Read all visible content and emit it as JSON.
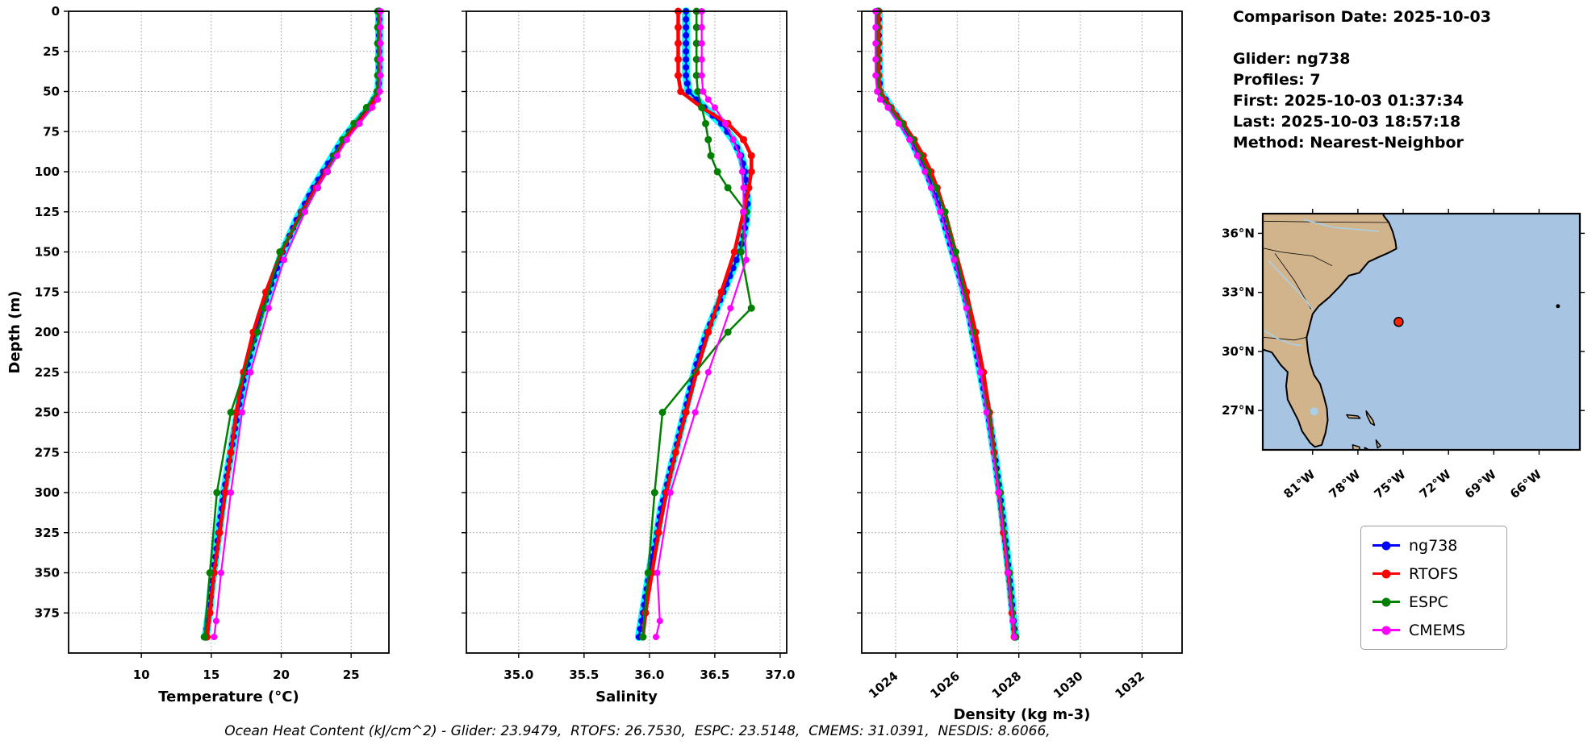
{
  "info": {
    "comparison_date": "Comparison Date: 2025-10-03",
    "glider": "Glider: ng738",
    "profiles": "Profiles: 7",
    "first": "First: 2025-10-03 01:37:34",
    "last": "Last: 2025-10-03 18:57:18",
    "method": "Method: Nearest-Neighbor"
  },
  "legend": {
    "items": [
      {
        "label": "ng738",
        "color": "#0000ff"
      },
      {
        "label": "RTOFS",
        "color": "#ff0000"
      },
      {
        "label": "ESPC",
        "color": "#008000"
      },
      {
        "label": "CMEMS",
        "color": "#ff00ff"
      }
    ]
  },
  "footer": {
    "ohc_caption": "Ocean Heat Content (kJ/cm^2) - Glider: 23.9479,  RTOFS: 26.7530,  ESPC: 23.5148,  CMEMS: 31.0391,  NESDIS: 8.6066,"
  },
  "ohc": {
    "glider": 23.9479,
    "rtofs": 26.753,
    "espc": 23.5148,
    "cmems": 31.0391,
    "nesdis": 8.6066
  },
  "chart_data": [
    {
      "type": "line",
      "name": "temperature-profile",
      "xlabel": "Temperature (°C)",
      "ylabel": "Depth (m)",
      "xlim": [
        4.8,
        27.7
      ],
      "ylim": [
        400,
        0
      ],
      "xticks": [
        10,
        15,
        20,
        25
      ],
      "xticklabels": [
        "10",
        "15",
        "20",
        "25"
      ],
      "yticks": [
        0,
        25,
        50,
        75,
        100,
        125,
        150,
        175,
        200,
        225,
        250,
        275,
        300,
        325,
        350,
        375
      ],
      "rotate_xticks": false,
      "grid": true,
      "series": [
        {
          "name": "ng738",
          "color": "#0000ff",
          "spread_color": "#00ffff",
          "depths": [
            0,
            10,
            20,
            30,
            40,
            50,
            60,
            70,
            80,
            90,
            100,
            110,
            120,
            130,
            140,
            150,
            160,
            170,
            180,
            190,
            200,
            210,
            220,
            230,
            240,
            250,
            260,
            270,
            280,
            290,
            300,
            310,
            320,
            330,
            340,
            350,
            360,
            370,
            380,
            390
          ],
          "values": [
            27.0,
            27.0,
            27.0,
            27.0,
            27.0,
            26.95,
            26.3,
            25.3,
            24.4,
            23.7,
            23.0,
            22.3,
            21.7,
            21.1,
            20.6,
            20.1,
            19.7,
            19.3,
            18.9,
            18.5,
            18.2,
            17.9,
            17.6,
            17.3,
            17.1,
            16.9,
            16.7,
            16.5,
            16.3,
            16.1,
            15.9,
            15.75,
            15.6,
            15.45,
            15.3,
            15.15,
            15.0,
            14.9,
            14.75,
            14.6
          ]
        },
        {
          "name": "RTOFS",
          "color": "#ff0000",
          "depths": [
            0,
            10,
            20,
            30,
            40,
            50,
            60,
            70,
            80,
            90,
            100,
            110,
            125,
            150,
            175,
            200,
            225,
            250,
            275,
            300,
            325,
            350,
            375,
            390
          ],
          "values": [
            27.0,
            27.0,
            27.0,
            27.0,
            27.0,
            26.9,
            26.4,
            25.5,
            24.6,
            23.9,
            23.2,
            22.5,
            21.5,
            20.0,
            18.9,
            18.0,
            17.3,
            16.8,
            16.4,
            16.0,
            15.6,
            15.2,
            14.9,
            14.7
          ]
        },
        {
          "name": "ESPC",
          "color": "#008000",
          "depths": [
            0,
            10,
            20,
            30,
            40,
            50,
            60,
            70,
            80,
            90,
            100,
            110,
            125,
            150,
            185,
            200,
            250,
            300,
            350,
            390
          ],
          "values": [
            26.9,
            26.9,
            26.9,
            26.9,
            26.9,
            26.85,
            26.1,
            25.2,
            24.4,
            23.8,
            23.3,
            22.6,
            21.6,
            19.9,
            18.8,
            18.3,
            16.4,
            15.4,
            14.9,
            14.5
          ]
        },
        {
          "name": "CMEMS",
          "color": "#ff00ff",
          "depths": [
            0,
            10,
            20,
            30,
            40,
            50,
            55,
            60,
            70,
            80,
            90,
            100,
            110,
            125,
            155,
            185,
            225,
            250,
            300,
            350,
            380,
            390
          ],
          "values": [
            27.1,
            27.1,
            27.1,
            27.1,
            27.1,
            27.05,
            26.9,
            26.5,
            25.6,
            24.7,
            24.0,
            23.3,
            22.6,
            21.7,
            20.2,
            19.1,
            17.8,
            17.2,
            16.4,
            15.7,
            15.35,
            15.2
          ]
        }
      ]
    },
    {
      "type": "line",
      "name": "salinity-profile",
      "xlabel": "Salinity",
      "ylabel": "Depth (m)",
      "xlim": [
        34.6,
        37.05
      ],
      "ylim": [
        400,
        0
      ],
      "xticks": [
        35.0,
        35.5,
        36.0,
        36.5,
        37.0
      ],
      "xticklabels": [
        "35.0",
        "35.5",
        "36.0",
        "36.5",
        "37.0"
      ],
      "yticks": [
        0,
        25,
        50,
        75,
        100,
        125,
        150,
        175,
        200,
        225,
        250,
        275,
        300,
        325,
        350,
        375
      ],
      "rotate_xticks": false,
      "grid": true,
      "series": [
        {
          "name": "ng738",
          "color": "#0000ff",
          "spread_color": "#00ffff",
          "depths": [
            0,
            10,
            20,
            30,
            40,
            50,
            60,
            70,
            80,
            90,
            100,
            110,
            120,
            130,
            140,
            150,
            160,
            170,
            180,
            190,
            200,
            210,
            220,
            230,
            240,
            250,
            260,
            270,
            280,
            290,
            300,
            310,
            320,
            330,
            340,
            350,
            360,
            370,
            380,
            390
          ],
          "values": [
            36.28,
            36.28,
            36.28,
            36.28,
            36.28,
            36.3,
            36.42,
            36.55,
            36.64,
            36.7,
            36.73,
            36.74,
            36.75,
            36.74,
            36.72,
            36.69,
            36.64,
            36.59,
            36.54,
            36.49,
            36.44,
            36.4,
            36.36,
            36.33,
            36.3,
            36.27,
            36.24,
            36.21,
            36.18,
            36.15,
            36.12,
            36.09,
            36.07,
            36.05,
            36.02,
            36.0,
            35.98,
            35.96,
            35.94,
            35.92
          ]
        },
        {
          "name": "RTOFS",
          "color": "#ff0000",
          "depths": [
            0,
            10,
            20,
            30,
            40,
            50,
            60,
            70,
            80,
            90,
            100,
            110,
            125,
            150,
            175,
            200,
            225,
            250,
            275,
            300,
            325,
            350,
            375,
            390
          ],
          "values": [
            36.22,
            36.22,
            36.22,
            36.22,
            36.22,
            36.24,
            36.4,
            36.6,
            36.72,
            36.78,
            36.78,
            36.76,
            36.72,
            36.65,
            36.55,
            36.45,
            36.36,
            36.28,
            36.2,
            36.13,
            36.07,
            36.02,
            35.97,
            35.95
          ]
        },
        {
          "name": "ESPC",
          "color": "#008000",
          "depths": [
            0,
            10,
            20,
            30,
            40,
            50,
            60,
            70,
            80,
            90,
            100,
            110,
            125,
            150,
            185,
            200,
            250,
            300,
            350,
            390
          ],
          "values": [
            36.36,
            36.36,
            36.36,
            36.36,
            36.36,
            36.37,
            36.4,
            36.43,
            36.45,
            36.47,
            36.52,
            36.6,
            36.74,
            36.7,
            36.78,
            36.6,
            36.1,
            36.04,
            35.99,
            35.95
          ]
        },
        {
          "name": "CMEMS",
          "color": "#ff00ff",
          "depths": [
            0,
            10,
            20,
            30,
            40,
            50,
            55,
            60,
            70,
            80,
            90,
            100,
            110,
            125,
            155,
            185,
            225,
            250,
            300,
            350,
            380,
            390
          ],
          "values": [
            36.4,
            36.4,
            36.4,
            36.4,
            36.4,
            36.41,
            36.45,
            36.5,
            36.58,
            36.64,
            36.69,
            36.71,
            36.72,
            36.72,
            36.74,
            36.62,
            36.45,
            36.35,
            36.16,
            36.06,
            36.08,
            36.05
          ]
        }
      ]
    },
    {
      "type": "line",
      "name": "density-profile",
      "xlabel": "Density (kg m-3)",
      "ylabel": "Depth (m)",
      "xlim": [
        1022.9,
        1033.3
      ],
      "ylim": [
        400,
        0
      ],
      "xticks": [
        1024,
        1026,
        1028,
        1030,
        1032
      ],
      "xticklabels": [
        "1024",
        "1026",
        "1028",
        "1030",
        "1032"
      ],
      "yticks": [
        0,
        25,
        50,
        75,
        100,
        125,
        150,
        175,
        200,
        225,
        250,
        275,
        300,
        325,
        350,
        375
      ],
      "rotate_xticks": true,
      "grid": true,
      "series": [
        {
          "name": "ng738",
          "color": "#0000ff",
          "spread_color": "#00ffff",
          "depths": [
            0,
            10,
            20,
            30,
            40,
            50,
            60,
            70,
            80,
            90,
            100,
            110,
            120,
            130,
            140,
            150,
            160,
            170,
            180,
            190,
            200,
            210,
            220,
            230,
            240,
            250,
            260,
            270,
            280,
            290,
            300,
            310,
            320,
            330,
            340,
            350,
            360,
            370,
            380,
            390
          ],
          "values": [
            1023.45,
            1023.45,
            1023.45,
            1023.46,
            1023.46,
            1023.5,
            1023.85,
            1024.2,
            1024.5,
            1024.75,
            1025.0,
            1025.2,
            1025.4,
            1025.55,
            1025.7,
            1025.85,
            1026.0,
            1026.15,
            1026.28,
            1026.4,
            1026.5,
            1026.6,
            1026.7,
            1026.8,
            1026.9,
            1027.0,
            1027.08,
            1027.16,
            1027.24,
            1027.31,
            1027.38,
            1027.44,
            1027.5,
            1027.56,
            1027.62,
            1027.68,
            1027.73,
            1027.78,
            1027.83,
            1027.88
          ]
        },
        {
          "name": "RTOFS",
          "color": "#ff0000",
          "depths": [
            0,
            10,
            20,
            30,
            40,
            50,
            60,
            70,
            80,
            90,
            100,
            110,
            125,
            150,
            175,
            200,
            225,
            250,
            275,
            300,
            325,
            350,
            375,
            390
          ],
          "values": [
            1023.45,
            1023.45,
            1023.45,
            1023.45,
            1023.45,
            1023.5,
            1023.85,
            1024.25,
            1024.6,
            1024.9,
            1025.15,
            1025.35,
            1025.6,
            1025.95,
            1026.3,
            1026.6,
            1026.85,
            1027.05,
            1027.2,
            1027.35,
            1027.5,
            1027.65,
            1027.78,
            1027.85
          ]
        },
        {
          "name": "ESPC",
          "color": "#008000",
          "depths": [
            0,
            10,
            20,
            30,
            40,
            50,
            60,
            70,
            80,
            90,
            100,
            110,
            125,
            150,
            185,
            200,
            250,
            300,
            350,
            390
          ],
          "values": [
            1023.4,
            1023.4,
            1023.4,
            1023.4,
            1023.4,
            1023.45,
            1023.8,
            1024.2,
            1024.55,
            1024.8,
            1025.05,
            1025.3,
            1025.6,
            1025.95,
            1026.35,
            1026.5,
            1027.0,
            1027.4,
            1027.7,
            1027.9
          ]
        },
        {
          "name": "CMEMS",
          "color": "#ff00ff",
          "depths": [
            0,
            10,
            20,
            30,
            40,
            50,
            55,
            60,
            70,
            80,
            90,
            100,
            110,
            125,
            155,
            185,
            225,
            250,
            300,
            350,
            380,
            390
          ],
          "values": [
            1023.35,
            1023.35,
            1023.35,
            1023.35,
            1023.35,
            1023.4,
            1023.5,
            1023.75,
            1024.1,
            1024.45,
            1024.7,
            1024.95,
            1025.15,
            1025.45,
            1025.9,
            1026.3,
            1026.75,
            1026.95,
            1027.35,
            1027.65,
            1027.8,
            1027.85
          ]
        }
      ]
    },
    {
      "type": "map",
      "name": "location-map",
      "extent": {
        "lon_min": -84.3,
        "lon_max": -63.3,
        "lat_min": 25.0,
        "lat_max": 37.0
      },
      "lat_ticks": [
        {
          "value": 36,
          "label": "36°N"
        },
        {
          "value": 33,
          "label": "33°N"
        },
        {
          "value": 30,
          "label": "30°N"
        },
        {
          "value": 27,
          "label": "27°N"
        }
      ],
      "lon_ticks": [
        {
          "value": -81,
          "label": "81°W"
        },
        {
          "value": -78,
          "label": "78°W"
        },
        {
          "value": -75,
          "label": "75°W"
        },
        {
          "value": -72,
          "label": "72°W"
        },
        {
          "value": -69,
          "label": "69°W"
        },
        {
          "value": -66,
          "label": "66°W"
        }
      ],
      "glider_position": {
        "lon": -75.3,
        "lat": 31.5
      },
      "land_color": "#d2b48c",
      "ocean_color": "#a7c4e2",
      "marker_color": "#ff2200"
    }
  ]
}
